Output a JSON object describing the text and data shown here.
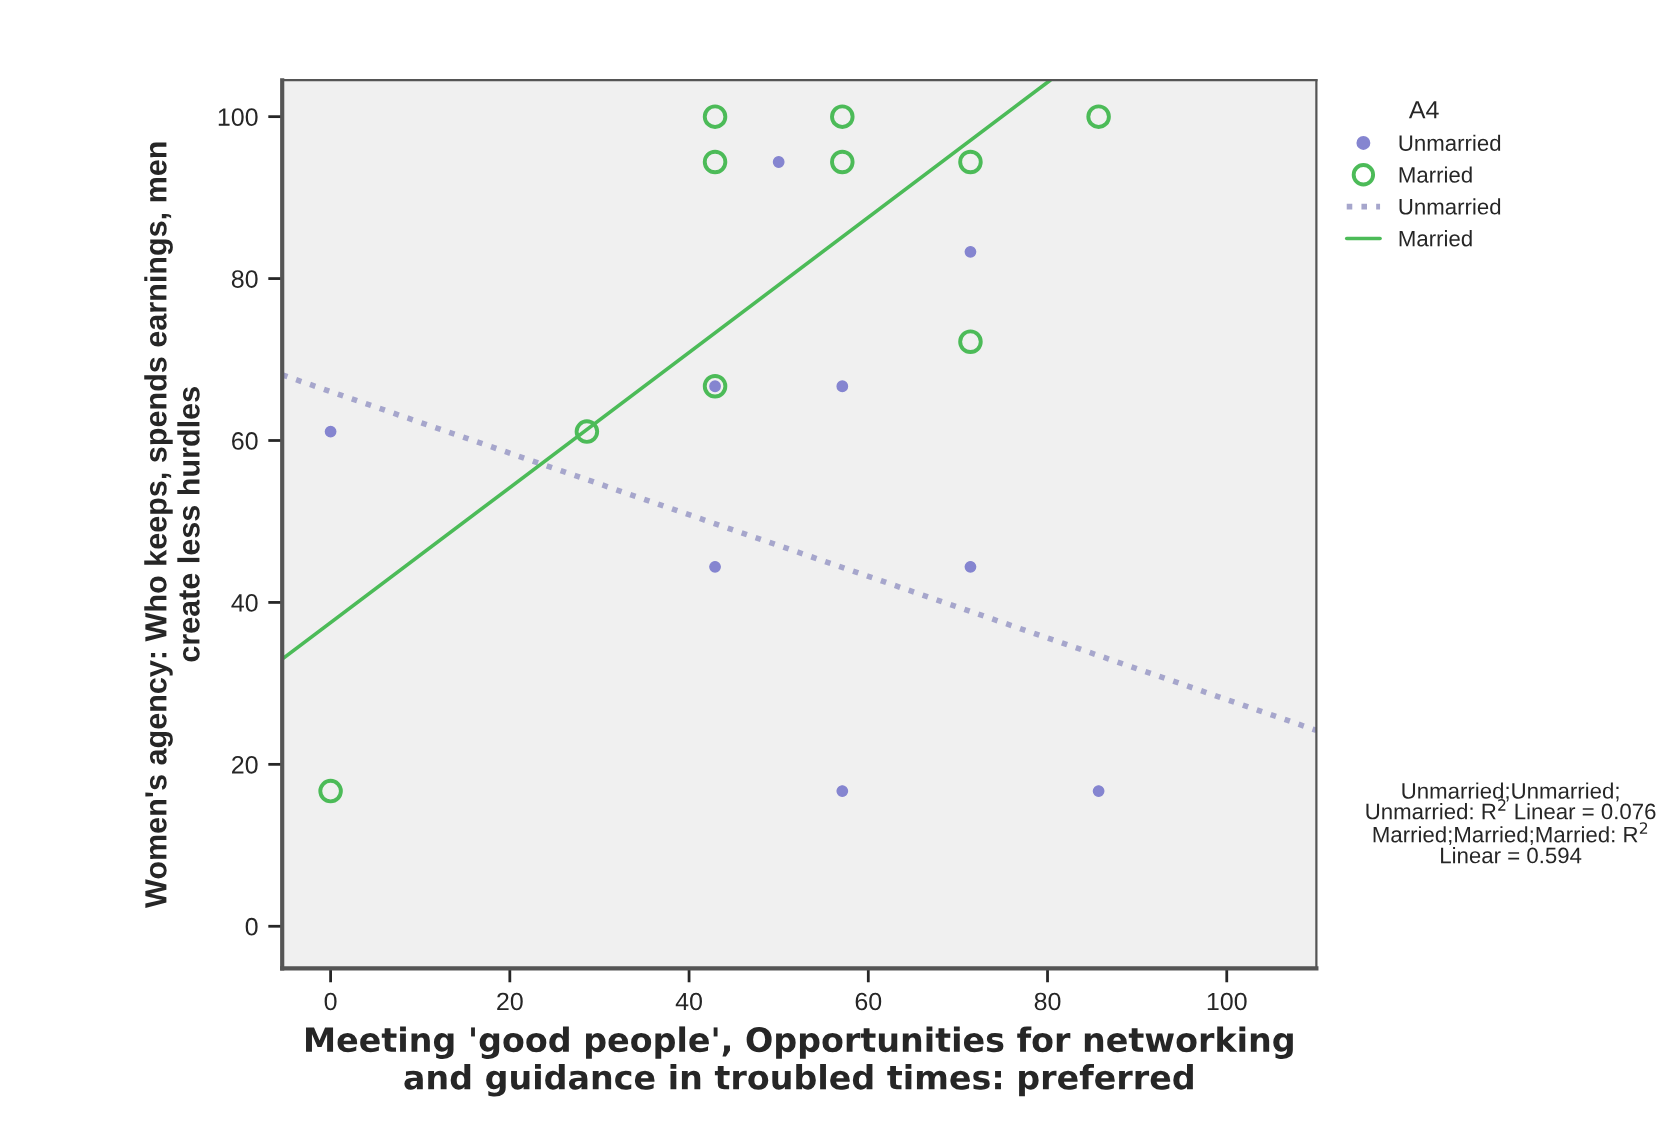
{
  "chart_data": {
    "type": "scatter",
    "xlabel": "Meeting 'good people', Opportunities for networking\nand guidance in troubled times: preferred",
    "ylabel": "Women's agency: Who keeps, spends earnings, men\ncreate less hurdles",
    "legend_title": "A4",
    "xlim": [
      -5.4,
      110
    ],
    "ylim": [
      -5.2,
      104.5
    ],
    "xticks": [
      0,
      20,
      40,
      60,
      80,
      100
    ],
    "yticks": [
      0,
      20,
      40,
      60,
      80,
      100
    ],
    "grid": false,
    "legend": "top right",
    "series": [
      {
        "name": "Unmarried",
        "marker": "circle",
        "color": "#8585d0",
        "x": [
          50,
          71.4,
          57.1,
          0,
          42.9,
          71.4,
          57.1,
          85.7,
          42.9
        ],
        "values": [
          94.4,
          83.3,
          66.7,
          61.1,
          44.4,
          44.4,
          16.7,
          16.7,
          66.7
        ]
      },
      {
        "name": "Married",
        "marker": "circle",
        "color": "#4cbb58",
        "x": [
          42.9,
          42.9,
          57.1,
          57.1,
          71.4,
          85.7,
          71.4,
          42.9,
          28.6,
          0
        ],
        "values": [
          100,
          94.4,
          100,
          94.4,
          94.4,
          100,
          72.2,
          66.7,
          61.1,
          16.7
        ]
      },
      {
        "name": "Unmarried",
        "type": "line",
        "line_style": "dotted",
        "color": "#a6a6cc",
        "x": [
          -5.4,
          110
        ],
        "values": [
          68.1,
          24.2
        ]
      },
      {
        "name": "Married",
        "type": "line",
        "line_style": "solid",
        "color": "#4cbb58",
        "x": [
          -5.4,
          80.3
        ],
        "values": [
          33,
          104.5
        ]
      }
    ],
    "annotations": [
      "Unmarried;Unmarried;\nUnmarried: R$^{2}$ Linear = 0.076\nMarried;Married;Married: R$^{2}$\nLinear = 0.594"
    ]
  }
}
